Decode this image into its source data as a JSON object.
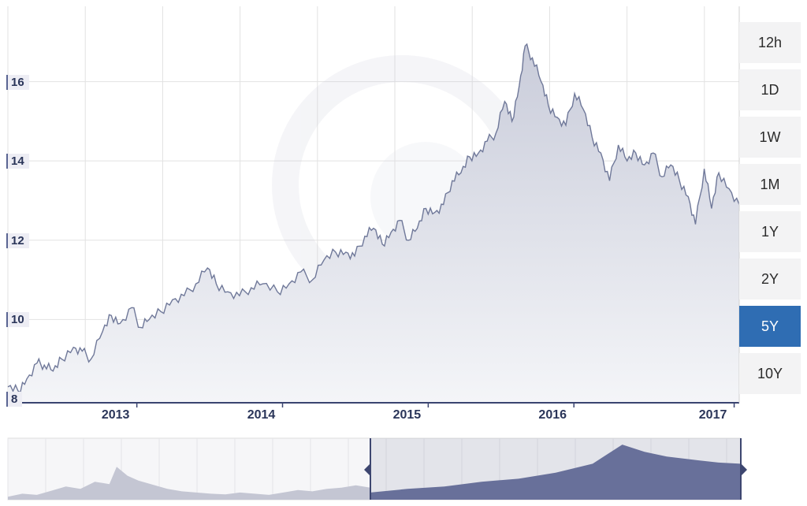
{
  "chart_data": {
    "type": "area",
    "x_tick_labels": [
      "2013",
      "2014",
      "2015",
      "2016",
      "2017"
    ],
    "y_tick_labels": [
      "8",
      "10",
      "12",
      "14",
      "16"
    ],
    "ylim": [
      7.9,
      17.9
    ],
    "xlim": [
      2012.25,
      2017.27
    ],
    "grid": true,
    "points": [
      [
        2012.25,
        8.3
      ],
      [
        2012.32,
        8.2
      ],
      [
        2012.38,
        8.5
      ],
      [
        2012.45,
        8.9
      ],
      [
        2012.5,
        8.85
      ],
      [
        2012.56,
        8.7
      ],
      [
        2012.62,
        9.0
      ],
      [
        2012.7,
        9.3
      ],
      [
        2012.76,
        9.2
      ],
      [
        2012.82,
        9.0
      ],
      [
        2012.9,
        9.7
      ],
      [
        2012.96,
        10.1
      ],
      [
        2013.02,
        9.9
      ],
      [
        2013.1,
        10.3
      ],
      [
        2013.16,
        9.8
      ],
      [
        2013.22,
        10.0
      ],
      [
        2013.3,
        10.2
      ],
      [
        2013.38,
        10.5
      ],
      [
        2013.46,
        10.6
      ],
      [
        2013.54,
        10.9
      ],
      [
        2013.62,
        11.3
      ],
      [
        2013.68,
        10.9
      ],
      [
        2013.76,
        10.7
      ],
      [
        2013.84,
        10.6
      ],
      [
        2013.92,
        10.8
      ],
      [
        2014.0,
        10.9
      ],
      [
        2014.1,
        10.7
      ],
      [
        2014.18,
        10.9
      ],
      [
        2014.26,
        11.2
      ],
      [
        2014.34,
        11.0
      ],
      [
        2014.42,
        11.5
      ],
      [
        2014.5,
        11.7
      ],
      [
        2014.57,
        11.7
      ],
      [
        2014.63,
        11.6
      ],
      [
        2014.7,
        12.1
      ],
      [
        2014.76,
        12.3
      ],
      [
        2014.82,
        11.9
      ],
      [
        2014.88,
        12.2
      ],
      [
        2014.94,
        12.5
      ],
      [
        2015.0,
        12.0
      ],
      [
        2015.06,
        12.3
      ],
      [
        2015.12,
        12.8
      ],
      [
        2015.18,
        12.7
      ],
      [
        2015.24,
        12.9
      ],
      [
        2015.3,
        13.5
      ],
      [
        2015.36,
        13.7
      ],
      [
        2015.42,
        14.1
      ],
      [
        2015.48,
        14.2
      ],
      [
        2015.54,
        14.5
      ],
      [
        2015.6,
        14.7
      ],
      [
        2015.66,
        15.5
      ],
      [
        2015.71,
        15.0
      ],
      [
        2015.76,
        15.9
      ],
      [
        2015.8,
        16.9
      ],
      [
        2015.85,
        16.6
      ],
      [
        2015.91,
        16.0
      ],
      [
        2015.96,
        15.4
      ],
      [
        2016.02,
        15.1
      ],
      [
        2016.08,
        14.9
      ],
      [
        2016.14,
        15.7
      ],
      [
        2016.2,
        15.3
      ],
      [
        2016.26,
        14.6
      ],
      [
        2016.32,
        14.2
      ],
      [
        2016.38,
        13.5
      ],
      [
        2016.44,
        14.4
      ],
      [
        2016.5,
        14.0
      ],
      [
        2016.56,
        14.2
      ],
      [
        2016.62,
        13.9
      ],
      [
        2016.68,
        14.2
      ],
      [
        2016.74,
        13.6
      ],
      [
        2016.8,
        13.9
      ],
      [
        2016.86,
        13.5
      ],
      [
        2016.92,
        13.1
      ],
      [
        2016.97,
        12.4
      ],
      [
        2017.03,
        13.8
      ],
      [
        2017.08,
        12.8
      ],
      [
        2017.13,
        13.7
      ],
      [
        2017.2,
        13.3
      ],
      [
        2017.27,
        12.9
      ]
    ],
    "overview": [
      [
        0,
        0.05
      ],
      [
        0.04,
        0.1
      ],
      [
        0.08,
        0.08
      ],
      [
        0.12,
        0.15
      ],
      [
        0.16,
        0.22
      ],
      [
        0.2,
        0.18
      ],
      [
        0.24,
        0.3
      ],
      [
        0.28,
        0.26
      ],
      [
        0.3,
        0.55
      ],
      [
        0.33,
        0.4
      ],
      [
        0.36,
        0.32
      ],
      [
        0.4,
        0.25
      ],
      [
        0.44,
        0.18
      ],
      [
        0.48,
        0.14
      ],
      [
        0.52,
        0.12
      ],
      [
        0.56,
        0.1
      ],
      [
        0.6,
        0.09
      ],
      [
        0.64,
        0.12
      ],
      [
        0.68,
        0.1
      ],
      [
        0.72,
        0.08
      ],
      [
        0.76,
        0.12
      ],
      [
        0.8,
        0.16
      ],
      [
        0.84,
        0.14
      ],
      [
        0.88,
        0.18
      ],
      [
        0.92,
        0.2
      ],
      [
        0.96,
        0.24
      ],
      [
        1.0,
        0.2
      ]
    ],
    "overview_selected": [
      [
        0,
        0.12
      ],
      [
        0.1,
        0.18
      ],
      [
        0.2,
        0.22
      ],
      [
        0.3,
        0.3
      ],
      [
        0.4,
        0.35
      ],
      [
        0.5,
        0.45
      ],
      [
        0.6,
        0.6
      ],
      [
        0.68,
        0.92
      ],
      [
        0.74,
        0.8
      ],
      [
        0.8,
        0.72
      ],
      [
        0.88,
        0.66
      ],
      [
        0.94,
        0.62
      ],
      [
        1.0,
        0.6
      ]
    ],
    "colors": {
      "line": "#6f7899",
      "fill_top": "#c9ccda",
      "fill_bottom": "#f1f2f6",
      "grid": "#dcdcdc",
      "overview_fill": "#68709a",
      "overview_base": "#c4c6d3"
    }
  },
  "range_buttons": [
    "12h",
    "1D",
    "1W",
    "1M",
    "1Y",
    "2Y",
    "5Y",
    "10Y"
  ],
  "range_active": "5Y",
  "top_text": "8"
}
